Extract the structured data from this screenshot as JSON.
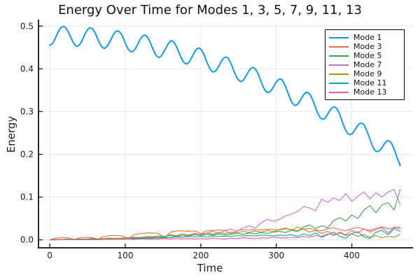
{
  "chart_data": {
    "type": "line",
    "title": "Energy Over Time for Modes 1, 3, 5, 7, 9, 11, 13",
    "xlabel": "Time",
    "ylabel": "Energy",
    "xlim": [
      -14,
      481
    ],
    "ylim": [
      -0.017,
      0.507
    ],
    "xticks": [
      0,
      100,
      200,
      300,
      400
    ],
    "xtick_labels": [
      "0",
      "100",
      "200",
      "300",
      "400"
    ],
    "yticks": [
      0.0,
      0.1,
      0.2,
      0.3,
      0.4,
      0.5
    ],
    "ytick_labels": [
      "0.0",
      "0.1",
      "0.2",
      "0.3",
      "0.4",
      "0.5"
    ],
    "grid": true,
    "legend_position": "top-right",
    "colors": {
      "grid": "#e8e8e8",
      "axis": "#2a2a2a",
      "text": "#1c1c1c",
      "background": "#ffffff",
      "legend_border": "#000000"
    },
    "x_fine": [
      0,
      4,
      8,
      12,
      16,
      20,
      24,
      28,
      32,
      36,
      40,
      44,
      48,
      52,
      56,
      60,
      64,
      68,
      72,
      76,
      80,
      84,
      88,
      92,
      96,
      100,
      104,
      108,
      112,
      116,
      120,
      124,
      128,
      132,
      136,
      140,
      144,
      148,
      152,
      156,
      160,
      164,
      168,
      172,
      176,
      180,
      184,
      188,
      192,
      196,
      200,
      204,
      208,
      212,
      216,
      220,
      224,
      228,
      232,
      236,
      240,
      244,
      248,
      252,
      256,
      260,
      264,
      268,
      272,
      276,
      280,
      284,
      288,
      292,
      296,
      300,
      304,
      308,
      312,
      316,
      320,
      324,
      328,
      332,
      336,
      340,
      344,
      348,
      352,
      356,
      360,
      364,
      368,
      372,
      376,
      380,
      384,
      388,
      392,
      396,
      400,
      404,
      408,
      412,
      416,
      420,
      424,
      428,
      432,
      436,
      440,
      444,
      448,
      452,
      456,
      460,
      464
    ],
    "x_coarse": [
      0,
      8,
      16,
      24,
      32,
      40,
      48,
      56,
      64,
      72,
      80,
      88,
      96,
      104,
      112,
      120,
      128,
      136,
      144,
      152,
      160,
      168,
      176,
      184,
      192,
      200,
      208,
      216,
      224,
      232,
      240,
      248,
      256,
      264,
      272,
      280,
      288,
      296,
      304,
      312,
      320,
      328,
      336,
      344,
      352,
      360,
      368,
      376,
      384,
      392,
      400,
      408,
      416,
      424,
      432,
      440,
      448,
      456,
      464
    ],
    "series": [
      {
        "name": "Mode 1",
        "color": "#009AFA",
        "x": "fine",
        "smooth": true,
        "width": 1.9,
        "values": [
          0.455,
          0.46,
          0.474,
          0.489,
          0.498,
          0.498,
          0.488,
          0.473,
          0.459,
          0.453,
          0.458,
          0.471,
          0.486,
          0.495,
          0.494,
          0.484,
          0.468,
          0.454,
          0.448,
          0.453,
          0.465,
          0.479,
          0.488,
          0.487,
          0.477,
          0.46,
          0.446,
          0.44,
          0.444,
          0.456,
          0.47,
          0.478,
          0.477,
          0.466,
          0.449,
          0.434,
          0.427,
          0.431,
          0.443,
          0.456,
          0.465,
          0.463,
          0.451,
          0.434,
          0.419,
          0.412,
          0.415,
          0.427,
          0.44,
          0.448,
          0.446,
          0.434,
          0.416,
          0.401,
          0.393,
          0.396,
          0.407,
          0.42,
          0.427,
          0.425,
          0.412,
          0.394,
          0.379,
          0.371,
          0.373,
          0.384,
          0.396,
          0.403,
          0.4,
          0.388,
          0.369,
          0.353,
          0.345,
          0.347,
          0.357,
          0.369,
          0.376,
          0.373,
          0.359,
          0.341,
          0.324,
          0.315,
          0.317,
          0.327,
          0.339,
          0.345,
          0.341,
          0.328,
          0.309,
          0.292,
          0.283,
          0.284,
          0.294,
          0.305,
          0.311,
          0.307,
          0.293,
          0.273,
          0.256,
          0.247,
          0.248,
          0.257,
          0.268,
          0.273,
          0.269,
          0.254,
          0.235,
          0.217,
          0.207,
          0.208,
          0.216,
          0.227,
          0.232,
          0.227,
          0.212,
          0.192,
          0.174
        ]
      },
      {
        "name": "Mode 3",
        "color": "#E36F47",
        "x": "coarse",
        "smooth": false,
        "width": 1.1,
        "values": [
          0.0,
          0.004,
          0.005,
          0.005,
          0.001,
          0.005,
          0.006,
          0.005,
          0.002,
          0.008,
          0.01,
          0.01,
          0.009,
          0.003,
          0.012,
          0.015,
          0.016,
          0.016,
          0.015,
          0.005,
          0.018,
          0.021,
          0.021,
          0.02,
          0.021,
          0.014,
          0.021,
          0.022,
          0.023,
          0.022,
          0.014,
          0.022,
          0.024,
          0.023,
          0.024,
          0.023,
          0.025,
          0.024,
          0.023,
          0.026,
          0.024,
          0.022,
          0.025,
          0.027,
          0.023,
          0.021,
          0.026,
          0.028,
          0.024,
          0.021,
          0.026,
          0.029,
          0.025,
          0.022,
          0.027,
          0.03,
          0.026,
          0.028,
          0.03
        ]
      },
      {
        "name": "Mode 5",
        "color": "#3EA44E",
        "x": "coarse",
        "smooth": false,
        "width": 1.1,
        "values": [
          0.0,
          0.001,
          0.001,
          0.002,
          0.001,
          0.002,
          0.002,
          0.003,
          0.002,
          0.003,
          0.004,
          0.003,
          0.004,
          0.005,
          0.004,
          0.006,
          0.005,
          0.007,
          0.006,
          0.008,
          0.01,
          0.008,
          0.011,
          0.009,
          0.012,
          0.01,
          0.013,
          0.011,
          0.014,
          0.012,
          0.013,
          0.015,
          0.013,
          0.016,
          0.014,
          0.017,
          0.015,
          0.018,
          0.02,
          0.017,
          0.022,
          0.019,
          0.03,
          0.035,
          0.026,
          0.033,
          0.028,
          0.045,
          0.052,
          0.044,
          0.058,
          0.05,
          0.07,
          0.08,
          0.063,
          0.082,
          0.087,
          0.07,
          0.118
        ]
      },
      {
        "name": "Mode 7",
        "color": "#C371D2",
        "x": "coarse",
        "smooth": false,
        "width": 1.1,
        "values": [
          0.0,
          0.0,
          0.001,
          0.0,
          0.001,
          0.001,
          0.0,
          0.001,
          0.001,
          0.002,
          0.001,
          0.002,
          0.002,
          0.003,
          0.002,
          0.003,
          0.004,
          0.003,
          0.005,
          0.004,
          0.006,
          0.008,
          0.006,
          0.01,
          0.013,
          0.01,
          0.016,
          0.02,
          0.015,
          0.022,
          0.025,
          0.02,
          0.028,
          0.033,
          0.027,
          0.04,
          0.048,
          0.043,
          0.048,
          0.056,
          0.06,
          0.066,
          0.078,
          0.075,
          0.068,
          0.095,
          0.088,
          0.098,
          0.092,
          0.108,
          0.09,
          0.102,
          0.112,
          0.096,
          0.11,
          0.1,
          0.112,
          0.118,
          0.082
        ]
      },
      {
        "name": "Mode 9",
        "color": "#AC8E18",
        "x": "coarse",
        "smooth": false,
        "width": 1.1,
        "values": [
          0.0,
          0.0,
          0.001,
          0.001,
          0.0,
          0.001,
          0.002,
          0.001,
          0.002,
          0.003,
          0.002,
          0.004,
          0.003,
          0.005,
          0.006,
          0.005,
          0.008,
          0.007,
          0.009,
          0.008,
          0.012,
          0.01,
          0.014,
          0.011,
          0.015,
          0.012,
          0.016,
          0.013,
          0.017,
          0.015,
          0.018,
          0.016,
          0.02,
          0.017,
          0.021,
          0.018,
          0.022,
          0.019,
          0.024,
          0.028,
          0.022,
          0.03,
          0.025,
          0.018,
          0.022,
          0.015,
          0.02,
          0.012,
          0.016,
          0.01,
          0.014,
          0.008,
          0.012,
          0.006,
          0.01,
          0.005,
          0.008,
          0.006,
          0.013
        ]
      },
      {
        "name": "Mode 11",
        "color": "#00AAAE",
        "x": "coarse",
        "smooth": false,
        "width": 1.1,
        "values": [
          0.0,
          0.0,
          0.0,
          0.001,
          0.0,
          0.001,
          0.001,
          0.0,
          0.001,
          0.001,
          0.002,
          0.001,
          0.002,
          0.002,
          0.003,
          0.004,
          0.003,
          0.005,
          0.004,
          0.006,
          0.005,
          0.007,
          0.006,
          0.008,
          0.007,
          0.008,
          0.007,
          0.009,
          0.008,
          0.009,
          0.008,
          0.01,
          0.009,
          0.01,
          0.009,
          0.011,
          0.01,
          0.009,
          0.011,
          0.01,
          0.012,
          0.008,
          0.014,
          0.01,
          0.016,
          0.006,
          0.012,
          0.018,
          0.008,
          0.004,
          0.015,
          0.019,
          0.007,
          0.003,
          0.018,
          0.022,
          0.012,
          0.026,
          0.02
        ]
      },
      {
        "name": "Mode 13",
        "color": "#ED5E93",
        "x": "coarse",
        "smooth": false,
        "width": 1.1,
        "values": [
          0.0,
          0.001,
          0.0,
          0.001,
          0.001,
          0.0,
          0.001,
          0.001,
          0.0,
          0.001,
          0.001,
          0.002,
          0.001,
          0.002,
          0.001,
          0.002,
          0.002,
          0.001,
          0.002,
          0.003,
          0.002,
          0.003,
          0.002,
          0.003,
          0.002,
          0.003,
          0.002,
          0.004,
          0.003,
          0.002,
          0.004,
          0.003,
          0.005,
          0.004,
          0.003,
          0.005,
          0.004,
          0.006,
          0.005,
          0.004,
          0.006,
          0.005,
          0.008,
          0.006,
          0.01,
          0.008,
          0.014,
          0.01,
          0.018,
          0.012,
          0.022,
          0.016,
          0.026,
          0.018,
          0.024,
          0.028,
          0.016,
          0.03,
          0.026
        ]
      }
    ]
  }
}
